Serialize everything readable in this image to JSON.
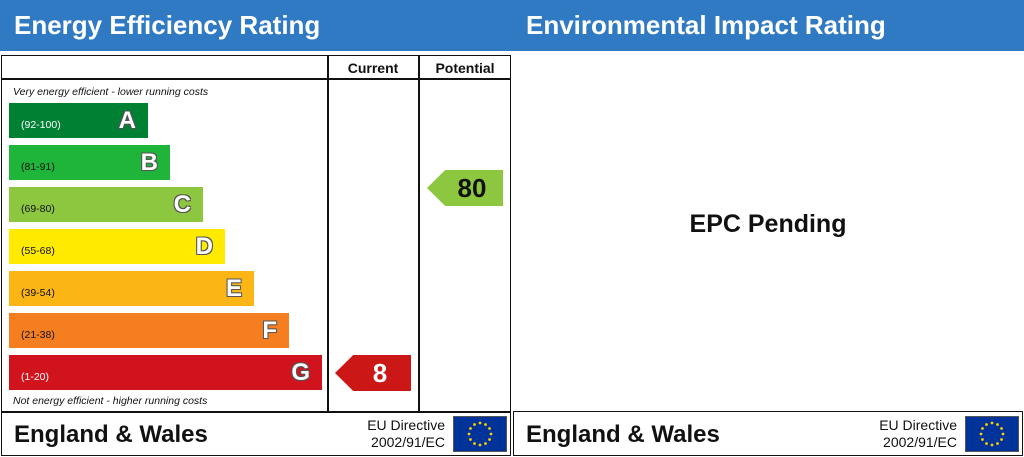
{
  "chart_data": {
    "type": "bar",
    "title": "Energy Efficiency Rating",
    "columns": [
      "Current",
      "Potential"
    ],
    "top_note": "Very energy efficient - lower running costs",
    "bottom_note": "Not energy efficient - higher running costs",
    "bands": [
      {
        "letter": "A",
        "range": "(92-100)",
        "color": "#008033",
        "dark": true
      },
      {
        "letter": "B",
        "range": "(81-91)",
        "color": "#1eb53a",
        "dark": false
      },
      {
        "letter": "C",
        "range": "(69-80)",
        "color": "#8dc63f",
        "dark": false
      },
      {
        "letter": "D",
        "range": "(55-68)",
        "color": "#ffea00",
        "dark": false
      },
      {
        "letter": "E",
        "range": "(39-54)",
        "color": "#fbb514",
        "dark": false
      },
      {
        "letter": "F",
        "range": "(21-38)",
        "color": "#f57f20",
        "dark": false
      },
      {
        "letter": "G",
        "range": "(1-20)",
        "color": "#d0131c",
        "dark": true
      }
    ],
    "current": {
      "value": "8",
      "band": "G",
      "color": "#cc1717"
    },
    "potential": {
      "value": "80",
      "band": "C",
      "color": "#8dc63f"
    }
  },
  "left": {
    "header": "Energy Efficiency Rating",
    "footer_title": "England & Wales",
    "directive_line1": "EU Directive",
    "directive_line2": "2002/91/EC"
  },
  "right": {
    "header": "Environmental Impact Rating",
    "pending": "EPC Pending",
    "footer_title": "England & Wales",
    "directive_line1": "EU Directive",
    "directive_line2": "2002/91/EC"
  },
  "icons": {
    "flag": "eu-flag-icon"
  }
}
